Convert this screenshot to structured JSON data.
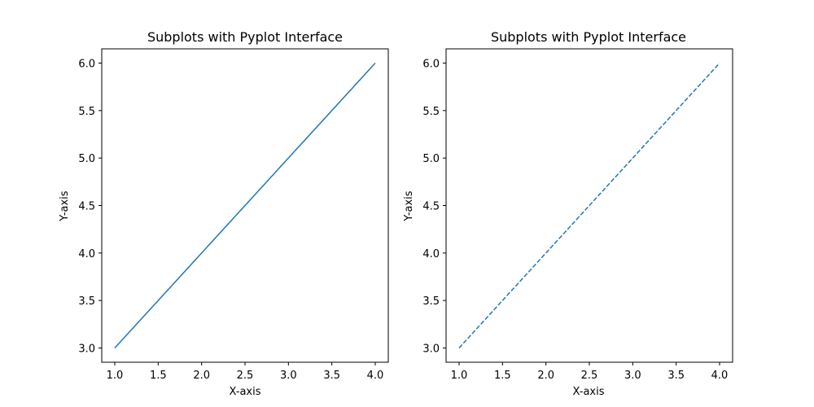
{
  "chart_data": [
    {
      "type": "line",
      "title": "Subplots with Pyplot Interface",
      "xlabel": "X-axis",
      "ylabel": "Y-axis",
      "x": [
        1,
        2,
        3,
        4
      ],
      "series": [
        {
          "values": [
            3,
            4,
            5,
            6
          ],
          "color": "#1f77b4",
          "linestyle": "solid"
        }
      ],
      "xlim": [
        0.85,
        4.15
      ],
      "ylim": [
        2.85,
        6.15
      ],
      "xticks": [
        1.0,
        1.5,
        2.0,
        2.5,
        3.0,
        3.5,
        4.0
      ],
      "yticks": [
        3.0,
        3.5,
        4.0,
        4.5,
        5.0,
        5.5,
        6.0
      ],
      "xtick_labels": [
        "1.0",
        "1.5",
        "2.0",
        "2.5",
        "3.0",
        "3.5",
        "4.0"
      ],
      "ytick_labels": [
        "3.0",
        "3.5",
        "4.0",
        "4.5",
        "5.0",
        "5.5",
        "6.0"
      ],
      "grid": false
    },
    {
      "type": "line",
      "title": "Subplots with Pyplot Interface",
      "xlabel": "X-axis",
      "ylabel": "Y-axis",
      "x": [
        1,
        2,
        3,
        4
      ],
      "series": [
        {
          "values": [
            3,
            4,
            5,
            6
          ],
          "color": "#1f77b4",
          "linestyle": "dashed"
        }
      ],
      "xlim": [
        0.85,
        4.15
      ],
      "ylim": [
        2.85,
        6.15
      ],
      "xticks": [
        1.0,
        1.5,
        2.0,
        2.5,
        3.0,
        3.5,
        4.0
      ],
      "yticks": [
        3.0,
        3.5,
        4.0,
        4.5,
        5.0,
        5.5,
        6.0
      ],
      "xtick_labels": [
        "1.0",
        "1.5",
        "2.0",
        "2.5",
        "3.0",
        "3.5",
        "4.0"
      ],
      "ytick_labels": [
        "3.0",
        "3.5",
        "4.0",
        "4.5",
        "5.0",
        "5.5",
        "6.0"
      ],
      "grid": false
    }
  ]
}
